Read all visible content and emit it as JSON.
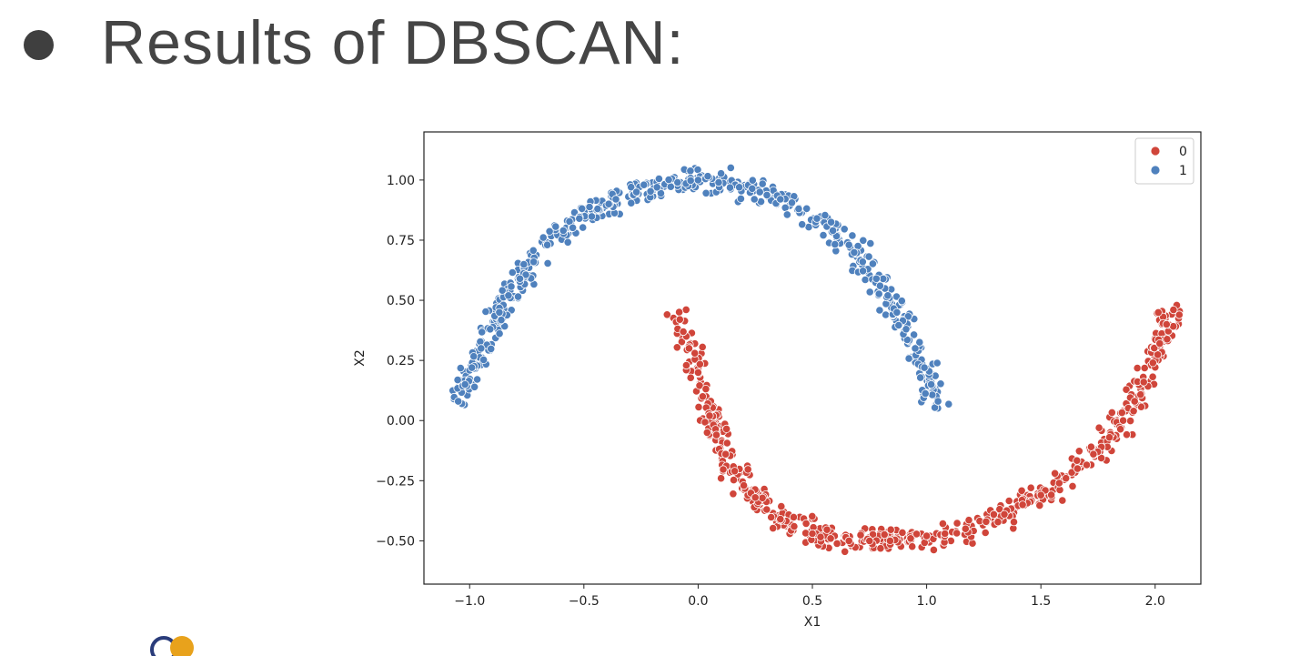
{
  "slide": {
    "title": "Results of DBSCAN:"
  },
  "colors": {
    "cluster_0": "#d0453a",
    "cluster_1": "#4f81bd",
    "axis": "#222222",
    "title": "#454545"
  },
  "chart_data": {
    "type": "scatter",
    "title": "",
    "xlabel": "X1",
    "ylabel": "X2",
    "xlim": [
      -1.2,
      2.2
    ],
    "ylim": [
      -0.68,
      1.2
    ],
    "xticks": [
      -1.0,
      -0.5,
      0.0,
      0.5,
      1.0,
      1.5,
      2.0
    ],
    "xtick_labels": [
      "−1.0",
      "−0.5",
      "0.0",
      "0.5",
      "1.0",
      "1.5",
      "2.0"
    ],
    "yticks": [
      -0.5,
      -0.25,
      0.0,
      0.25,
      0.5,
      0.75,
      1.0
    ],
    "ytick_labels": [
      "−0.50",
      "−0.25",
      "0.00",
      "0.25",
      "0.50",
      "0.75",
      "1.00"
    ],
    "grid": false,
    "legend": {
      "placement": "top-right",
      "entries": [
        "0",
        "1"
      ]
    },
    "series": [
      {
        "name": "0",
        "shape": "lower half-moon",
        "x": [
          -0.08,
          -0.04,
          0.0,
          0.02,
          0.05,
          0.08,
          0.12,
          0.16,
          0.2,
          0.25,
          0.3,
          0.36,
          0.42,
          0.5,
          0.58,
          0.66,
          0.75,
          0.84,
          0.93,
          1.0,
          1.08,
          1.17,
          1.26,
          1.34,
          1.42,
          1.5,
          1.58,
          1.66,
          1.73,
          1.8,
          1.86,
          1.91,
          1.95,
          1.99,
          2.02,
          2.05,
          2.08
        ],
        "y": [
          0.42,
          0.3,
          0.2,
          0.1,
          0.02,
          -0.06,
          -0.14,
          -0.21,
          -0.27,
          -0.32,
          -0.37,
          -0.41,
          -0.44,
          -0.47,
          -0.49,
          -0.5,
          -0.5,
          -0.5,
          -0.49,
          -0.48,
          -0.47,
          -0.45,
          -0.42,
          -0.39,
          -0.35,
          -0.31,
          -0.26,
          -0.2,
          -0.14,
          -0.07,
          0.0,
          0.08,
          0.16,
          0.24,
          0.32,
          0.4,
          0.46
        ]
      },
      {
        "name": "1",
        "shape": "upper half-moon",
        "x": [
          -1.05,
          -1.02,
          -0.99,
          -0.95,
          -0.91,
          -0.87,
          -0.83,
          -0.78,
          -0.72,
          -0.66,
          -0.59,
          -0.52,
          -0.44,
          -0.36,
          -0.27,
          -0.18,
          -0.09,
          0.0,
          0.09,
          0.18,
          0.27,
          0.36,
          0.44,
          0.52,
          0.59,
          0.66,
          0.72,
          0.78,
          0.83,
          0.87,
          0.91,
          0.95,
          0.99,
          1.02,
          1.05
        ],
        "y": [
          0.08,
          0.15,
          0.22,
          0.3,
          0.38,
          0.45,
          0.52,
          0.59,
          0.66,
          0.73,
          0.79,
          0.84,
          0.88,
          0.92,
          0.95,
          0.97,
          0.99,
          1.0,
          0.99,
          0.97,
          0.95,
          0.92,
          0.88,
          0.84,
          0.79,
          0.73,
          0.66,
          0.59,
          0.52,
          0.45,
          0.38,
          0.3,
          0.22,
          0.15,
          0.08
        ]
      }
    ]
  }
}
